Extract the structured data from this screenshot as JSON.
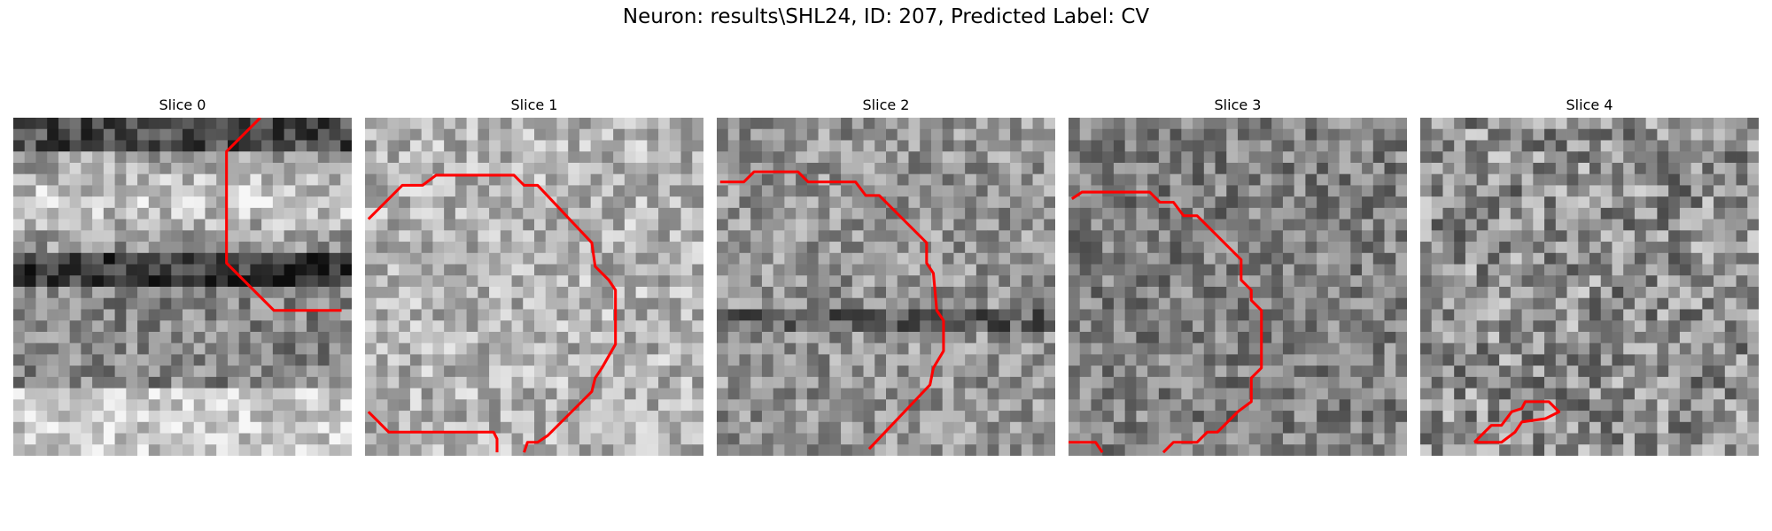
{
  "figure": {
    "title": "Neuron: results\\SHL24, ID: 207, Predicted Label: CV"
  },
  "panels": [
    {
      "title": "Slice 0",
      "seed": 11,
      "brightness": "bright-band-dark-stripe",
      "contour": [
        [
          7.3,
          0.0
        ],
        [
          6.3,
          1.0
        ],
        [
          6.3,
          4.3
        ],
        [
          6.8,
          4.8
        ],
        [
          7.7,
          5.7
        ],
        [
          9.7,
          5.7
        ]
      ]
    },
    {
      "title": "Slice 1",
      "seed": 23,
      "brightness": "mixed-light",
      "contour_segments": [
        [
          [
            0.1,
            3.0
          ],
          [
            1.1,
            2.0
          ],
          [
            1.7,
            2.0
          ],
          [
            2.1,
            1.7
          ],
          [
            4.4,
            1.7
          ],
          [
            4.7,
            2.0
          ],
          [
            5.1,
            2.0
          ],
          [
            6.7,
            3.7
          ],
          [
            6.8,
            4.4
          ],
          [
            7.2,
            4.8
          ],
          [
            7.4,
            5.1
          ],
          [
            7.4,
            6.7
          ],
          [
            7.0,
            7.4
          ],
          [
            6.8,
            7.7
          ],
          [
            6.7,
            8.1
          ],
          [
            5.4,
            9.4
          ],
          [
            5.1,
            9.6
          ],
          [
            4.8,
            9.6
          ],
          [
            4.7,
            9.9
          ]
        ],
        [
          [
            0.1,
            8.7
          ],
          [
            0.7,
            9.3
          ],
          [
            3.8,
            9.3
          ],
          [
            3.9,
            9.5
          ],
          [
            3.9,
            9.9
          ]
        ]
      ]
    },
    {
      "title": "Slice 2",
      "seed": 37,
      "brightness": "mid-gray-dark-spots",
      "contour": [
        [
          0.1,
          1.9
        ],
        [
          0.8,
          1.9
        ],
        [
          1.1,
          1.6
        ],
        [
          2.4,
          1.6
        ],
        [
          2.7,
          1.9
        ],
        [
          4.1,
          1.9
        ],
        [
          4.4,
          2.3
        ],
        [
          4.8,
          2.3
        ],
        [
          6.2,
          3.7
        ],
        [
          6.2,
          4.3
        ],
        [
          6.4,
          4.6
        ],
        [
          6.5,
          5.7
        ],
        [
          6.7,
          6.0
        ],
        [
          6.7,
          6.9
        ],
        [
          6.4,
          7.4
        ],
        [
          6.3,
          7.9
        ],
        [
          4.5,
          9.8
        ]
      ]
    },
    {
      "title": "Slice 3",
      "seed": 51,
      "brightness": "mixed-dark",
      "contour_segments": [
        [
          [
            0.1,
            2.4
          ],
          [
            0.4,
            2.2
          ],
          [
            2.4,
            2.2
          ],
          [
            2.7,
            2.5
          ],
          [
            3.1,
            2.5
          ],
          [
            3.4,
            2.9
          ],
          [
            3.8,
            2.9
          ],
          [
            5.1,
            4.2
          ],
          [
            5.1,
            4.8
          ],
          [
            5.4,
            5.1
          ],
          [
            5.4,
            5.4
          ],
          [
            5.7,
            5.7
          ],
          [
            5.7,
            7.4
          ],
          [
            5.4,
            7.7
          ],
          [
            5.4,
            8.4
          ],
          [
            5.0,
            8.7
          ],
          [
            4.4,
            9.3
          ],
          [
            4.1,
            9.3
          ],
          [
            3.8,
            9.6
          ],
          [
            3.1,
            9.6
          ],
          [
            2.8,
            9.9
          ]
        ],
        [
          [
            0.0,
            9.6
          ],
          [
            0.8,
            9.6
          ],
          [
            1.0,
            9.9
          ]
        ]
      ]
    },
    {
      "title": "Slice 4",
      "seed": 73,
      "brightness": "fine-noise",
      "contour": [
        [
          1.6,
          9.6
        ],
        [
          2.1,
          9.1
        ],
        [
          2.4,
          9.1
        ],
        [
          2.7,
          8.7
        ],
        [
          3.0,
          8.6
        ],
        [
          3.1,
          8.4
        ],
        [
          3.8,
          8.4
        ],
        [
          4.1,
          8.7
        ],
        [
          3.7,
          8.9
        ],
        [
          3.0,
          9.0
        ],
        [
          2.8,
          9.3
        ],
        [
          2.4,
          9.6
        ],
        [
          1.9,
          9.6
        ],
        [
          1.6,
          9.6
        ]
      ]
    }
  ],
  "colors": {
    "contour": "#ff0000",
    "background": "#ffffff"
  }
}
